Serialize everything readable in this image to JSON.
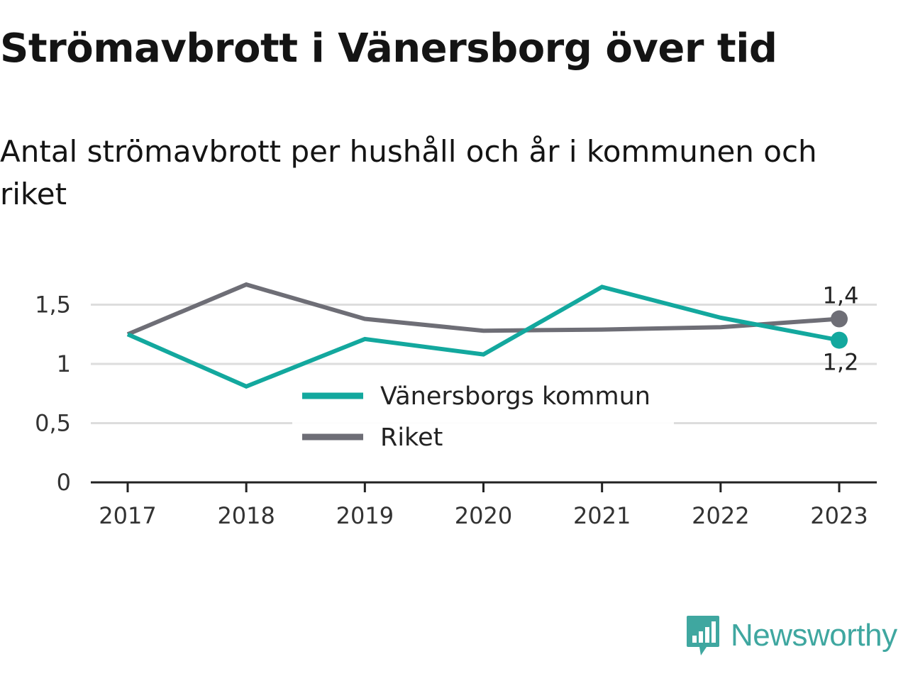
{
  "title": "Strömavbrott i Vänersborg över tid",
  "subtitle": "Antal strömavbrott per hushåll och år i kommunen och riket",
  "brand": {
    "name": "Newsworthy",
    "icon": "newsworthy-logo-icon",
    "color": "#3fa7a0"
  },
  "chart_data": {
    "type": "line",
    "x": [
      "2017",
      "2018",
      "2019",
      "2020",
      "2021",
      "2022",
      "2023"
    ],
    "yticks": [
      0,
      0.5,
      1,
      1.5
    ],
    "ytick_labels": [
      "0",
      "0,5",
      "1",
      "1,5"
    ],
    "ylim": [
      0,
      1.75
    ],
    "grid": true,
    "legend_position": "center",
    "series": [
      {
        "name": "Vänersborgs kommun",
        "color": "#13a89e",
        "values": [
          1.25,
          0.81,
          1.21,
          1.08,
          1.65,
          1.39,
          1.2
        ],
        "end_label": "1,2"
      },
      {
        "name": "Riket",
        "color": "#6e6e76",
        "values": [
          1.25,
          1.67,
          1.38,
          1.28,
          1.29,
          1.31,
          1.38
        ],
        "end_label": "1,4"
      }
    ]
  }
}
